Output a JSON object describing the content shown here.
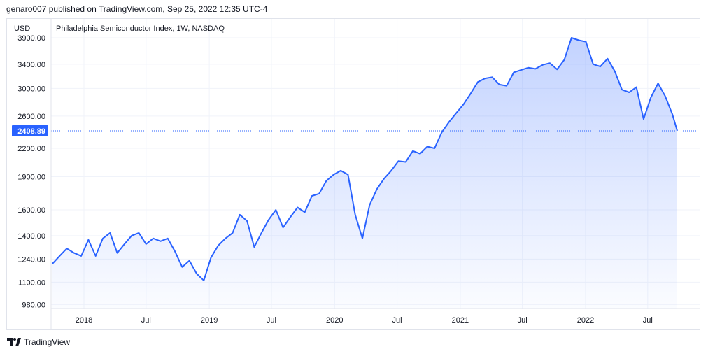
{
  "publisher_line": "genaro007 published on TradingView.com, Sep 25, 2022 12:35 UTC-4",
  "footer_brand": "TradingView",
  "colors": {
    "line": "#2962ff",
    "grid": "#f0f3fa",
    "price_tag": "#2962ff"
  },
  "chart_data": {
    "type": "area",
    "title": "Philadelphia Semiconductor Index, 1W, NASDAQ",
    "currency": "USD",
    "y_scale": "log",
    "ylim": [
      960,
      4300
    ],
    "x_ticks": [
      "2018",
      "Jul",
      "2019",
      "Jul",
      "2020",
      "Jul",
      "2021",
      "Jul",
      "2022",
      "Jul"
    ],
    "y_ticks": [
      "980.00",
      "1100.00",
      "1240.00",
      "1400.00",
      "1600.00",
      "1900.00",
      "2200.00",
      "2600.00",
      "3000.00",
      "3400.00",
      "3900.00"
    ],
    "last_value": "2408.89",
    "series": [
      {
        "x": [
          "2017-10-01",
          "2017-10-22",
          "2017-11-12",
          "2017-12-03",
          "2017-12-24",
          "2018-01-14",
          "2018-02-04",
          "2018-02-25",
          "2018-03-18",
          "2018-04-08",
          "2018-04-29",
          "2018-05-20",
          "2018-06-10",
          "2018-07-01",
          "2018-07-22",
          "2018-08-12",
          "2018-09-02",
          "2018-09-23",
          "2018-10-14",
          "2018-11-04",
          "2018-11-25",
          "2018-12-16",
          "2019-01-06",
          "2019-01-27",
          "2019-02-17",
          "2019-03-10",
          "2019-03-31",
          "2019-04-21",
          "2019-05-12",
          "2019-06-02",
          "2019-06-23",
          "2019-07-14",
          "2019-08-04",
          "2019-08-25",
          "2019-09-15",
          "2019-10-06",
          "2019-10-27",
          "2019-11-17",
          "2019-12-08",
          "2019-12-29",
          "2020-01-19",
          "2020-02-09",
          "2020-03-01",
          "2020-03-22",
          "2020-04-12",
          "2020-05-03",
          "2020-05-24",
          "2020-06-14",
          "2020-07-05",
          "2020-07-26",
          "2020-08-16",
          "2020-09-06",
          "2020-09-27",
          "2020-10-18",
          "2020-11-08",
          "2020-11-29",
          "2020-12-20",
          "2021-01-10",
          "2021-01-31",
          "2021-02-21",
          "2021-03-14",
          "2021-04-04",
          "2021-04-25",
          "2021-05-16",
          "2021-06-06",
          "2021-06-27",
          "2021-07-18",
          "2021-08-08",
          "2021-08-29",
          "2021-09-19",
          "2021-10-10",
          "2021-10-31",
          "2021-11-21",
          "2021-12-12",
          "2022-01-02",
          "2022-01-23",
          "2022-02-13",
          "2022-03-06",
          "2022-03-27",
          "2022-04-17",
          "2022-05-08",
          "2022-05-29",
          "2022-06-19",
          "2022-07-10",
          "2022-07-31",
          "2022-08-21",
          "2022-09-11",
          "2022-09-25"
        ],
        "values": [
          1210,
          1260,
          1310,
          1280,
          1260,
          1370,
          1260,
          1380,
          1420,
          1280,
          1340,
          1400,
          1420,
          1340,
          1380,
          1360,
          1380,
          1290,
          1190,
          1230,
          1150,
          1110,
          1250,
          1330,
          1380,
          1420,
          1560,
          1510,
          1320,
          1420,
          1520,
          1600,
          1460,
          1540,
          1620,
          1580,
          1720,
          1740,
          1860,
          1920,
          1960,
          1920,
          1560,
          1380,
          1640,
          1780,
          1880,
          1960,
          2060,
          2050,
          2170,
          2140,
          2220,
          2200,
          2390,
          2520,
          2640,
          2760,
          2920,
          3100,
          3160,
          3180,
          3060,
          3040,
          3260,
          3300,
          3340,
          3320,
          3390,
          3420,
          3310,
          3480,
          3900,
          3850,
          3820,
          3400,
          3360,
          3500,
          3280,
          2980,
          2940,
          3020,
          2560,
          2860,
          3080,
          2880,
          2620,
          2408.89
        ]
      }
    ]
  }
}
